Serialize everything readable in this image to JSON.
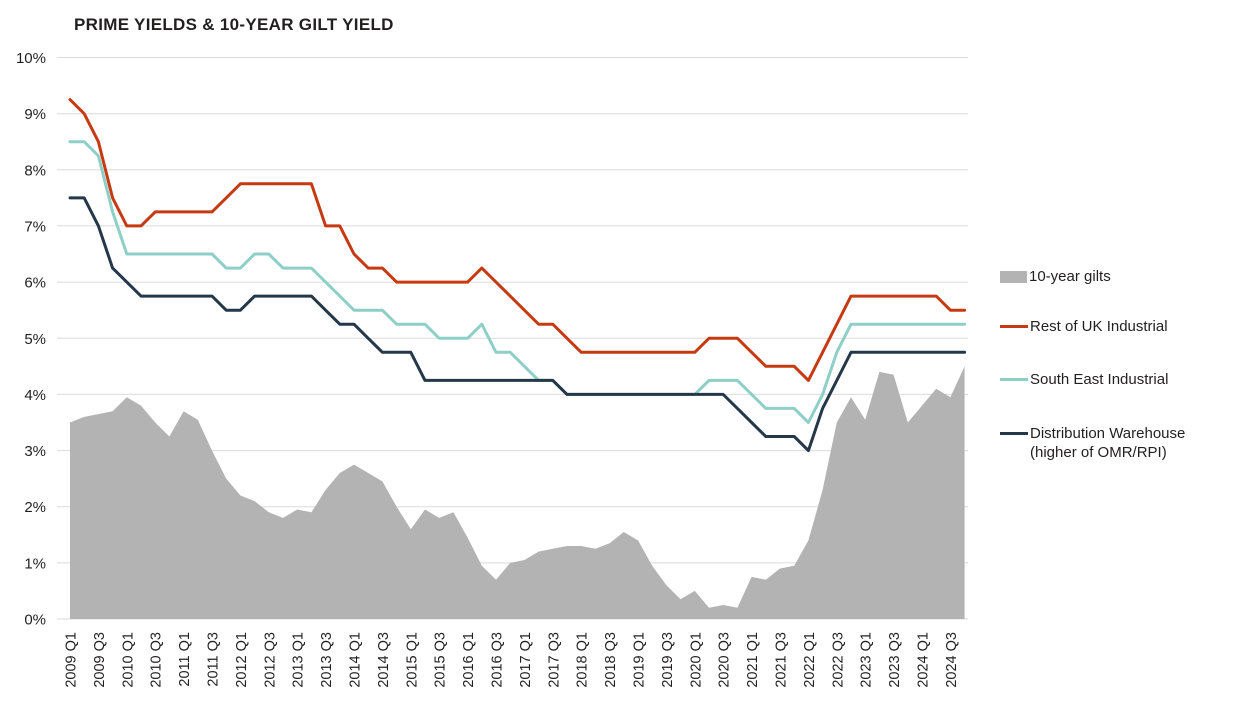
{
  "title": "PRIME YIELDS & 10-YEAR GILT YIELD",
  "colors": {
    "gilts_area": "#b3b3b3",
    "rest_of_uk": "#c63a12",
    "south_east": "#8ecfc8",
    "distribution": "#24384a",
    "gridline": "#dbdbdb",
    "text": "#221f1f"
  },
  "legend": {
    "items": [
      {
        "label": "10-year gilts",
        "type": "area",
        "color": "#b3b3b3"
      },
      {
        "label": "Rest of UK Industrial",
        "type": "line",
        "color": "#c63a12"
      },
      {
        "label": "South East Industrial",
        "type": "line",
        "color": "#8ecfc8"
      },
      {
        "label": "Distribution Warehouse",
        "label2": "(higher of OMR/RPI)",
        "type": "line",
        "color": "#24384a"
      }
    ]
  },
  "chart_data": {
    "type": "combo-area-line",
    "title": "PRIME YIELDS & 10-YEAR GILT YIELD",
    "frequency": "quarterly",
    "x_start": "2009 Q1",
    "x_end": "2024 Q4",
    "n_points": 64,
    "grid": "horizontal",
    "legend_position": "right",
    "ylim": [
      0,
      10
    ],
    "y_tick_labels": [
      "10%",
      "9%",
      "8%",
      "7%",
      "6%",
      "5%",
      "4%",
      "3%",
      "2%",
      "1%",
      "0%"
    ],
    "x_tick_labels": [
      "2009 Q1",
      "2009 Q3",
      "2010 Q1",
      "2010 Q3",
      "2011 Q1",
      "2011 Q3",
      "2012 Q1",
      "2012 Q3",
      "2013 Q1",
      "2013 Q3",
      "2014 Q1",
      "2014 Q3",
      "2015 Q1",
      "2015 Q3",
      "2016 Q1",
      "2016 Q3",
      "2017 Q1",
      "2017 Q3",
      "2018 Q1",
      "2018 Q3",
      "2019 Q1",
      "2019 Q3",
      "2020 Q1",
      "2020 Q3",
      "2021 Q1",
      "2021 Q3",
      "2022 Q1",
      "2022 Q3",
      "2023 Q1",
      "2023 Q3",
      "2024 Q1",
      "2024 Q3"
    ],
    "series": [
      {
        "name": "10-year gilts",
        "type": "area",
        "color": "#b3b3b3",
        "values": [
          3.5,
          3.6,
          3.65,
          3.7,
          3.95,
          3.8,
          3.5,
          3.25,
          3.7,
          3.55,
          3.0,
          2.5,
          2.2,
          2.1,
          1.9,
          1.8,
          1.95,
          1.9,
          2.3,
          2.6,
          2.75,
          2.6,
          2.45,
          2.0,
          1.6,
          1.95,
          1.8,
          1.9,
          1.45,
          0.95,
          0.7,
          1.0,
          1.05,
          1.2,
          1.25,
          1.3,
          1.3,
          1.25,
          1.35,
          1.55,
          1.4,
          0.95,
          0.6,
          0.35,
          0.5,
          0.2,
          0.25,
          0.2,
          0.75,
          0.7,
          0.9,
          0.95,
          1.4,
          2.3,
          3.5,
          3.95,
          3.55,
          4.4,
          4.35,
          3.5,
          3.8,
          4.1,
          3.95,
          4.5
        ]
      },
      {
        "name": "Rest of UK Industrial",
        "type": "line",
        "color": "#c63a12",
        "values": [
          9.25,
          9.0,
          8.5,
          7.5,
          7.0,
          7.0,
          7.25,
          7.25,
          7.25,
          7.25,
          7.25,
          7.5,
          7.75,
          7.75,
          7.75,
          7.75,
          7.75,
          7.75,
          7.0,
          7.0,
          6.5,
          6.25,
          6.25,
          6.0,
          6.0,
          6.0,
          6.0,
          6.0,
          6.0,
          6.25,
          6.0,
          5.75,
          5.5,
          5.25,
          5.25,
          5.0,
          4.75,
          4.75,
          4.75,
          4.75,
          4.75,
          4.75,
          4.75,
          4.75,
          4.75,
          5.0,
          5.0,
          5.0,
          4.75,
          4.5,
          4.5,
          4.5,
          4.25,
          4.75,
          5.25,
          5.75,
          5.75,
          5.75,
          5.75,
          5.75,
          5.75,
          5.75,
          5.5,
          5.5
        ]
      },
      {
        "name": "South East Industrial",
        "type": "line",
        "color": "#8ecfc8",
        "values": [
          8.5,
          8.5,
          8.25,
          7.25,
          6.5,
          6.5,
          6.5,
          6.5,
          6.5,
          6.5,
          6.5,
          6.25,
          6.25,
          6.5,
          6.5,
          6.25,
          6.25,
          6.25,
          6.0,
          5.75,
          5.5,
          5.5,
          5.5,
          5.25,
          5.25,
          5.25,
          5.0,
          5.0,
          5.0,
          5.25,
          4.75,
          4.75,
          4.5,
          4.25,
          4.25,
          4.0,
          4.0,
          4.0,
          4.0,
          4.0,
          4.0,
          4.0,
          4.0,
          4.0,
          4.0,
          4.25,
          4.25,
          4.25,
          4.0,
          3.75,
          3.75,
          3.75,
          3.5,
          4.0,
          4.75,
          5.25,
          5.25,
          5.25,
          5.25,
          5.25,
          5.25,
          5.25,
          5.25,
          5.25
        ]
      },
      {
        "name": "Distribution Warehouse (higher of OMR/RPI)",
        "type": "line",
        "color": "#24384a",
        "values": [
          7.5,
          7.5,
          7.0,
          6.25,
          6.0,
          5.75,
          5.75,
          5.75,
          5.75,
          5.75,
          5.75,
          5.5,
          5.5,
          5.75,
          5.75,
          5.75,
          5.75,
          5.75,
          5.5,
          5.25,
          5.25,
          5.0,
          4.75,
          4.75,
          4.75,
          4.25,
          4.25,
          4.25,
          4.25,
          4.25,
          4.25,
          4.25,
          4.25,
          4.25,
          4.25,
          4.0,
          4.0,
          4.0,
          4.0,
          4.0,
          4.0,
          4.0,
          4.0,
          4.0,
          4.0,
          4.0,
          4.0,
          3.75,
          3.5,
          3.25,
          3.25,
          3.25,
          3.0,
          3.75,
          4.25,
          4.75,
          4.75,
          4.75,
          4.75,
          4.75,
          4.75,
          4.75,
          4.75,
          4.75
        ]
      }
    ]
  }
}
